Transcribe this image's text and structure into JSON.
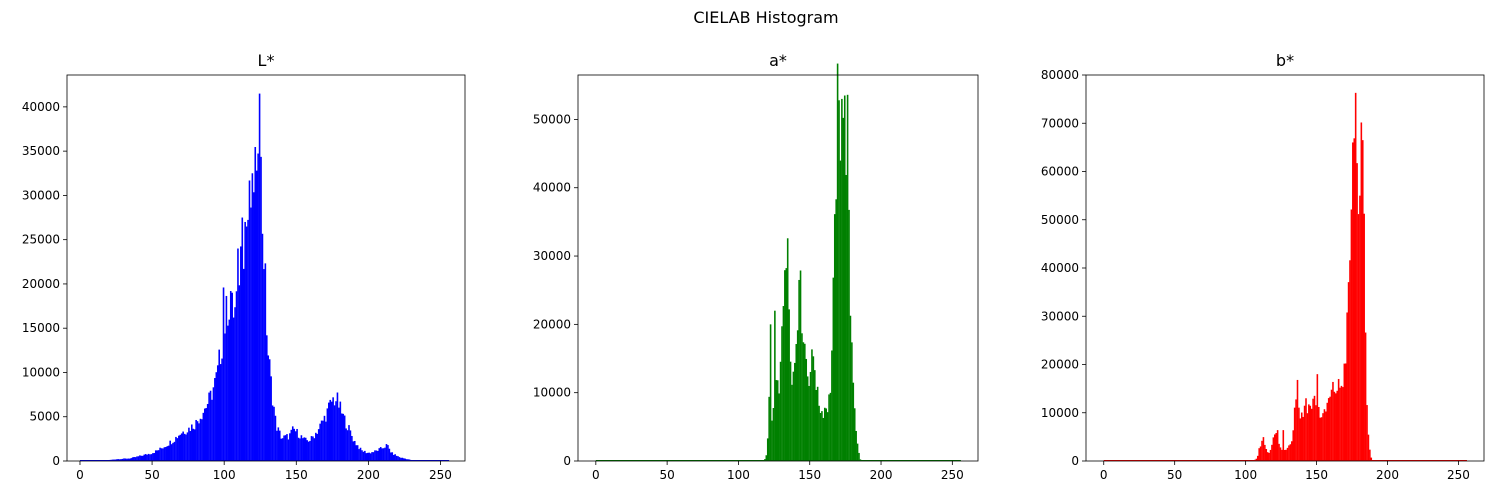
{
  "suptitle": "CIELAB Histogram",
  "chart_data": [
    {
      "type": "bar",
      "title": "L*",
      "color": "#0000ff",
      "xlim": [
        -9,
        267
      ],
      "ylim": [
        0,
        43600
      ],
      "xticks": [
        0,
        50,
        100,
        150,
        200,
        250
      ],
      "yticks": [
        0,
        5000,
        10000,
        15000,
        20000,
        25000,
        30000,
        35000,
        40000
      ],
      "bins": 256,
      "profile": [
        [
          0,
          0
        ],
        [
          10,
          0
        ],
        [
          18,
          60
        ],
        [
          25,
          200
        ],
        [
          30,
          250
        ],
        [
          35,
          300
        ],
        [
          40,
          500
        ],
        [
          45,
          700
        ],
        [
          50,
          900
        ],
        [
          55,
          1300
        ],
        [
          60,
          1800
        ],
        [
          65,
          2400
        ],
        [
          70,
          3200
        ],
        [
          75,
          3600
        ],
        [
          80,
          4200
        ],
        [
          85,
          5500
        ],
        [
          90,
          7000
        ],
        [
          95,
          9500
        ],
        [
          100,
          15000
        ],
        [
          103,
          18000
        ],
        [
          105,
          17000
        ],
        [
          108,
          17000
        ],
        [
          110,
          21000
        ],
        [
          112,
          24000
        ],
        [
          115,
          26500
        ],
        [
          118,
          28500
        ],
        [
          120,
          32500
        ],
        [
          122,
          33000
        ],
        [
          124,
          41500
        ],
        [
          126,
          29000
        ],
        [
          128,
          22000
        ],
        [
          130,
          13000
        ],
        [
          133,
          8000
        ],
        [
          136,
          4000
        ],
        [
          140,
          2600
        ],
        [
          145,
          2800
        ],
        [
          148,
          3600
        ],
        [
          152,
          3000
        ],
        [
          156,
          2300
        ],
        [
          160,
          2400
        ],
        [
          165,
          3500
        ],
        [
          170,
          5000
        ],
        [
          175,
          6900
        ],
        [
          178,
          7000
        ],
        [
          182,
          5200
        ],
        [
          186,
          3800
        ],
        [
          190,
          2300
        ],
        [
          195,
          1200
        ],
        [
          200,
          900
        ],
        [
          205,
          1100
        ],
        [
          210,
          1500
        ],
        [
          213,
          1800
        ],
        [
          216,
          900
        ],
        [
          222,
          400
        ],
        [
          230,
          100
        ],
        [
          235,
          30
        ],
        [
          240,
          0
        ],
        [
          255,
          0
        ]
      ],
      "spikes": [
        [
          99,
          19600
        ],
        [
          104,
          19200
        ],
        [
          109,
          24000
        ],
        [
          112,
          27500
        ],
        [
          114,
          27000
        ],
        [
          119,
          32500
        ],
        [
          122,
          32800
        ],
        [
          124,
          41500
        ]
      ]
    },
    {
      "type": "bar",
      "title": "a*",
      "color": "#008000",
      "xlim": [
        -12.5,
        268
      ],
      "ylim": [
        0,
        56500
      ],
      "xticks": [
        0,
        50,
        100,
        150,
        200,
        250
      ],
      "yticks": [
        0,
        10000,
        20000,
        30000,
        40000,
        50000
      ],
      "bins": 256,
      "profile": [
        [
          0,
          0
        ],
        [
          118,
          0
        ],
        [
          120,
          1000
        ],
        [
          121,
          6000
        ],
        [
          122,
          15000
        ],
        [
          123,
          5000
        ],
        [
          125,
          8000
        ],
        [
          127,
          12000
        ],
        [
          129,
          10000
        ],
        [
          130,
          22000
        ],
        [
          132,
          24000
        ],
        [
          133,
          26000
        ],
        [
          134,
          32000
        ],
        [
          136,
          24000
        ],
        [
          137,
          10000
        ],
        [
          138,
          12000
        ],
        [
          140,
          16000
        ],
        [
          142,
          24000
        ],
        [
          143,
          26000
        ],
        [
          145,
          20000
        ],
        [
          147,
          16000
        ],
        [
          149,
          12000
        ],
        [
          151,
          14000
        ],
        [
          153,
          16000
        ],
        [
          155,
          10000
        ],
        [
          157,
          8000
        ],
        [
          159,
          7000
        ],
        [
          161,
          8000
        ],
        [
          163,
          8000
        ],
        [
          165,
          12000
        ],
        [
          167,
          28000
        ],
        [
          168,
          36000
        ],
        [
          169,
          50000
        ],
        [
          170,
          52000
        ],
        [
          171,
          47000
        ],
        [
          172,
          52000
        ],
        [
          173,
          53000
        ],
        [
          174,
          50000
        ],
        [
          175,
          48000
        ],
        [
          176,
          47000
        ],
        [
          177,
          40000
        ],
        [
          178,
          25000
        ],
        [
          179,
          20000
        ],
        [
          181,
          10000
        ],
        [
          183,
          3000
        ],
        [
          185,
          500
        ],
        [
          186,
          0
        ],
        [
          255,
          0
        ]
      ],
      "spikes": [
        [
          122,
          20000
        ],
        [
          125,
          22000
        ],
        [
          134,
          32600
        ],
        [
          142,
          26500
        ],
        [
          170,
          52800
        ],
        [
          172,
          53000
        ],
        [
          174,
          53500
        ],
        [
          176,
          53600
        ]
      ]
    },
    {
      "type": "bar",
      "title": "b*",
      "color": "#ff0000",
      "xlim": [
        -12.5,
        268
      ],
      "ylim": [
        0,
        80000
      ],
      "xticks": [
        0,
        50,
        100,
        150,
        200,
        250
      ],
      "yticks": [
        0,
        10000,
        20000,
        30000,
        40000,
        50000,
        60000,
        70000,
        80000
      ],
      "bins": 256,
      "profile": [
        [
          0,
          0
        ],
        [
          105,
          0
        ],
        [
          108,
          500
        ],
        [
          110,
          3000
        ],
        [
          112,
          5000
        ],
        [
          114,
          3000
        ],
        [
          116,
          1500
        ],
        [
          118,
          3000
        ],
        [
          120,
          5000
        ],
        [
          122,
          6000
        ],
        [
          124,
          3000
        ],
        [
          126,
          2000
        ],
        [
          128,
          2500
        ],
        [
          130,
          3000
        ],
        [
          133,
          5000
        ],
        [
          136,
          16000
        ],
        [
          138,
          10000
        ],
        [
          140,
          9000
        ],
        [
          142,
          12000
        ],
        [
          145,
          11000
        ],
        [
          147,
          12000
        ],
        [
          150,
          13000
        ],
        [
          152,
          10000
        ],
        [
          155,
          9000
        ],
        [
          158,
          12000
        ],
        [
          162,
          15000
        ],
        [
          165,
          15000
        ],
        [
          168,
          16000
        ],
        [
          170,
          20000
        ],
        [
          172,
          30000
        ],
        [
          174,
          47000
        ],
        [
          175,
          55000
        ],
        [
          176,
          65000
        ],
        [
          177,
          76000
        ],
        [
          178,
          62000
        ],
        [
          180,
          55000
        ],
        [
          181,
          60000
        ],
        [
          182,
          66000
        ],
        [
          183,
          56000
        ],
        [
          184,
          35000
        ],
        [
          185,
          15000
        ],
        [
          187,
          3000
        ],
        [
          189,
          0
        ],
        [
          255,
          0
        ]
      ],
      "spikes": [
        [
          122,
          6400
        ],
        [
          126,
          6400
        ],
        [
          136,
          16800
        ],
        [
          142,
          13000
        ],
        [
          150,
          18000
        ],
        [
          165,
          17000
        ],
        [
          177,
          76300
        ],
        [
          182,
          66500
        ]
      ]
    }
  ]
}
